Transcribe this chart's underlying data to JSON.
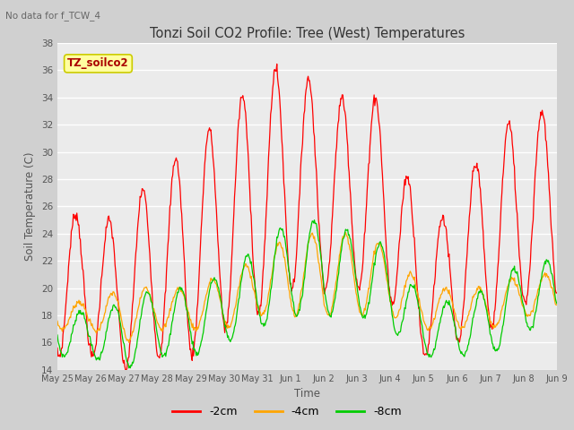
{
  "title": "Tonzi Soil CO2 Profile: Tree (West) Temperatures",
  "subtitle": "No data for f_TCW_4",
  "xlabel": "Time",
  "ylabel": "Soil Temperature (C)",
  "ylim": [
    14,
    38
  ],
  "yticks": [
    14,
    16,
    18,
    20,
    22,
    24,
    26,
    28,
    30,
    32,
    34,
    36,
    38
  ],
  "xtick_labels": [
    "May 25",
    "May 26",
    "May 27",
    "May 28",
    "May 29",
    "May 30",
    "May 31",
    "Jun 1",
    "Jun 2",
    "Jun 3",
    "Jun 4",
    "Jun 5",
    "Jun 6",
    "Jun 7",
    "Jun 8",
    "Jun 9"
  ],
  "legend_label": "TZ_soilco2",
  "line_colors": {
    "2cm": "#ff0000",
    "4cm": "#ffa500",
    "8cm": "#00cc00"
  },
  "line_labels": [
    "-2cm",
    "-4cm",
    "-8cm"
  ],
  "fig_bg_color": "#d0d0d0",
  "plot_bg": "#ebebeb",
  "grid_color": "#ffffff",
  "legend_box_facecolor": "#ffffa0",
  "legend_box_edgecolor": "#cccc00",
  "legend_text_color": "#aa0000",
  "subtitle_color": "#666666",
  "tick_label_color": "#555555",
  "axis_label_color": "#555555",
  "title_color": "#333333"
}
